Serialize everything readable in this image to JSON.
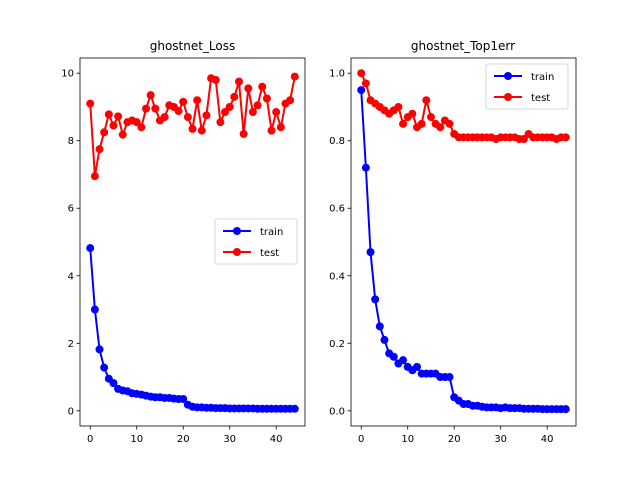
{
  "chart_data": [
    {
      "type": "line",
      "title": "ghostnet_Loss",
      "xlabel": "",
      "ylabel": "",
      "xlim": [
        -2.2,
        46.2
      ],
      "ylim": [
        -0.45,
        10.45
      ],
      "xticks": [
        0,
        10,
        20,
        30,
        40
      ],
      "yticks": [
        0,
        2,
        4,
        6,
        8,
        10
      ],
      "ytick_labels": [
        "0",
        "2",
        "4",
        "6",
        "8",
        "10"
      ],
      "legend_position": "center-right",
      "grid": false,
      "x": [
        0,
        1,
        2,
        3,
        4,
        5,
        6,
        7,
        8,
        9,
        10,
        11,
        12,
        13,
        14,
        15,
        16,
        17,
        18,
        19,
        20,
        21,
        22,
        23,
        24,
        25,
        26,
        27,
        28,
        29,
        30,
        31,
        32,
        33,
        34,
        35,
        36,
        37,
        38,
        39,
        40,
        41,
        42,
        43,
        44
      ],
      "series": [
        {
          "name": "train",
          "color": "#0000ff",
          "values": [
            4.82,
            3.0,
            1.82,
            1.28,
            0.95,
            0.82,
            0.65,
            0.6,
            0.58,
            0.52,
            0.5,
            0.48,
            0.45,
            0.42,
            0.4,
            0.4,
            0.38,
            0.38,
            0.36,
            0.35,
            0.35,
            0.18,
            0.12,
            0.1,
            0.1,
            0.09,
            0.09,
            0.08,
            0.08,
            0.08,
            0.07,
            0.07,
            0.07,
            0.07,
            0.07,
            0.07,
            0.06,
            0.06,
            0.06,
            0.06,
            0.06,
            0.06,
            0.06,
            0.06,
            0.06
          ]
        },
        {
          "name": "test",
          "color": "#ff0000",
          "values": [
            9.1,
            6.95,
            7.75,
            8.25,
            8.78,
            8.45,
            8.72,
            8.18,
            8.55,
            8.6,
            8.55,
            8.4,
            8.95,
            9.35,
            8.95,
            8.6,
            8.7,
            9.05,
            9.0,
            8.88,
            9.15,
            8.7,
            8.35,
            9.2,
            8.3,
            8.75,
            9.85,
            9.8,
            8.55,
            8.85,
            9.0,
            9.3,
            9.75,
            8.2,
            9.55,
            8.85,
            9.05,
            9.6,
            9.25,
            8.3,
            8.85,
            8.4,
            9.1,
            9.2,
            9.9
          ]
        }
      ]
    },
    {
      "type": "line",
      "title": "ghostnet_Top1err",
      "xlabel": "",
      "ylabel": "",
      "xlim": [
        -2.2,
        46.2
      ],
      "ylim": [
        -0.045,
        1.045
      ],
      "xticks": [
        0,
        10,
        20,
        30,
        40
      ],
      "yticks": [
        0,
        0.2,
        0.4,
        0.6,
        0.8,
        1.0
      ],
      "ytick_labels": [
        "0.0",
        "0.2",
        "0.4",
        "0.6",
        "0.8",
        "1.0"
      ],
      "legend_position": "upper-right",
      "grid": false,
      "x": [
        0,
        1,
        2,
        3,
        4,
        5,
        6,
        7,
        8,
        9,
        10,
        11,
        12,
        13,
        14,
        15,
        16,
        17,
        18,
        19,
        20,
        21,
        22,
        23,
        24,
        25,
        26,
        27,
        28,
        29,
        30,
        31,
        32,
        33,
        34,
        35,
        36,
        37,
        38,
        39,
        40,
        41,
        42,
        43,
        44
      ],
      "series": [
        {
          "name": "train",
          "color": "#0000ff",
          "values": [
            0.95,
            0.72,
            0.47,
            0.33,
            0.25,
            0.21,
            0.17,
            0.16,
            0.14,
            0.15,
            0.13,
            0.12,
            0.13,
            0.11,
            0.11,
            0.11,
            0.11,
            0.1,
            0.1,
            0.1,
            0.04,
            0.03,
            0.02,
            0.02,
            0.015,
            0.015,
            0.012,
            0.01,
            0.01,
            0.01,
            0.008,
            0.01,
            0.008,
            0.008,
            0.008,
            0.006,
            0.006,
            0.006,
            0.006,
            0.005,
            0.005,
            0.005,
            0.005,
            0.005,
            0.005
          ]
        },
        {
          "name": "test",
          "color": "#ff0000",
          "values": [
            1.0,
            0.97,
            0.92,
            0.91,
            0.9,
            0.89,
            0.88,
            0.89,
            0.9,
            0.85,
            0.87,
            0.88,
            0.84,
            0.85,
            0.92,
            0.87,
            0.85,
            0.84,
            0.86,
            0.85,
            0.82,
            0.81,
            0.81,
            0.81,
            0.81,
            0.81,
            0.81,
            0.81,
            0.81,
            0.805,
            0.81,
            0.81,
            0.81,
            0.81,
            0.805,
            0.805,
            0.82,
            0.81,
            0.81,
            0.81,
            0.81,
            0.81,
            0.805,
            0.81,
            0.81
          ]
        }
      ]
    }
  ]
}
